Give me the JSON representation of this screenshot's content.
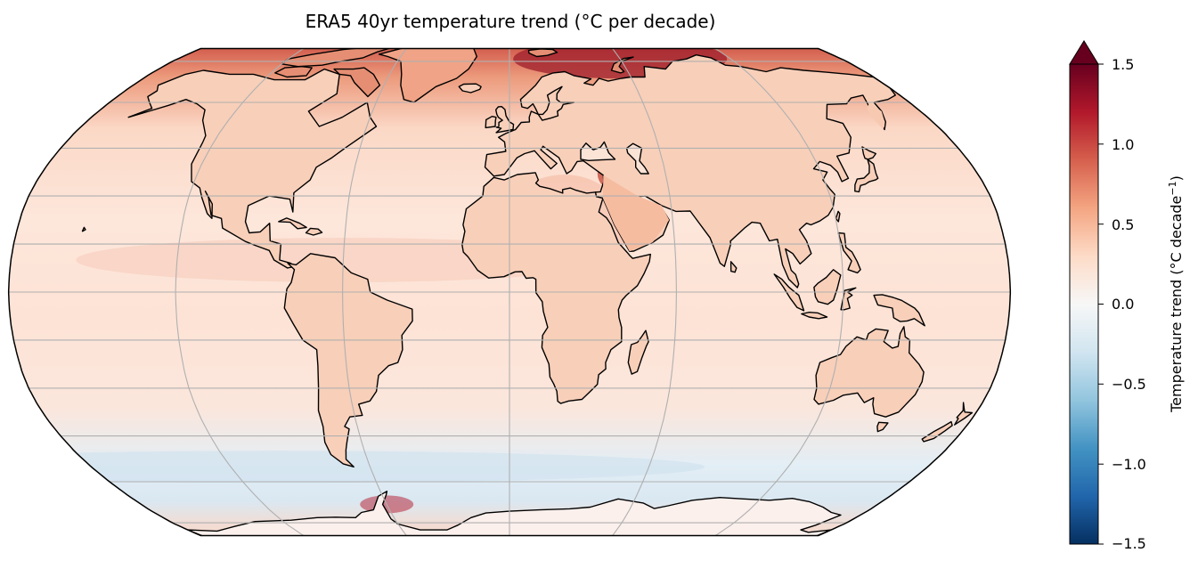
{
  "figure": {
    "title": "ERA5 40yr temperature trend (°C per decade)"
  },
  "colorbar": {
    "label_main": "Temperature trend (°C decade",
    "label_exp": "−1",
    "label_close": ")",
    "ticks": [
      "1.5",
      "1.0",
      "0.5",
      "0.0",
      "−0.5",
      "−1.0",
      "−1.5"
    ],
    "min": -1.5,
    "max": 1.5,
    "extend": "max",
    "colormap": "RdBu_r",
    "colors": [
      "#053061",
      "#2166ac",
      "#4393c3",
      "#92c5de",
      "#d1e5f0",
      "#f7f7f7",
      "#fddbc7",
      "#f4a582",
      "#d6604d",
      "#b2182b",
      "#67001f"
    ]
  },
  "map": {
    "projection": "Robinson",
    "central_longitude": 0,
    "gridlines": true,
    "coastlines": true,
    "background_trend_color": "#fbe3d6",
    "ocean_trend_color": "#fbe9e0",
    "land_trend_color": "#f7c9b1",
    "arctic_trend_color": "#d45a48",
    "southern_ocean_trend_color": "#dfeaf2"
  }
}
